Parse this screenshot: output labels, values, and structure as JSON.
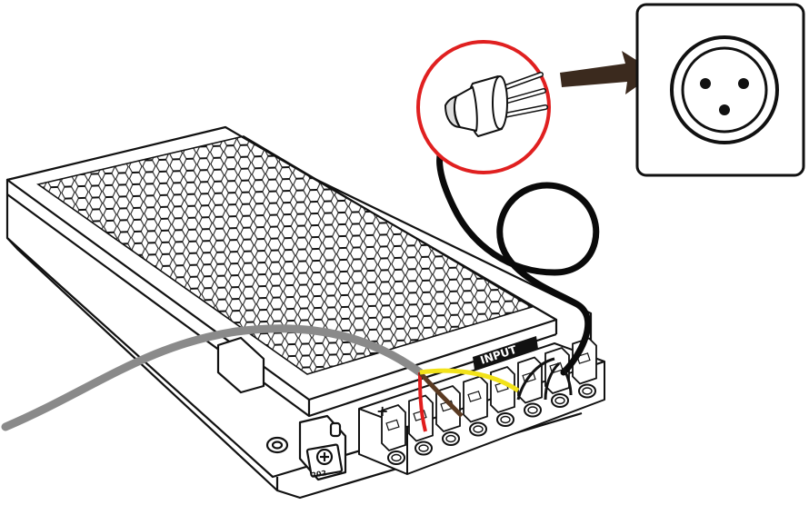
{
  "labels": {
    "input": "INPUT",
    "plus": "+",
    "pot_marking": "202"
  },
  "colors": {
    "outline": "#111111",
    "cable_black": "#0a0a0a",
    "cable_gray": "#8a8a8a",
    "wire_yellow": "#f2e21a",
    "wire_red": "#e11d1d",
    "wire_brown": "#5a3a22",
    "highlight_ring": "#e02020",
    "arrow": "#3b2a1e"
  },
  "icons": [
    "plug-icon",
    "socket-icon",
    "arrow-right-icon"
  ]
}
